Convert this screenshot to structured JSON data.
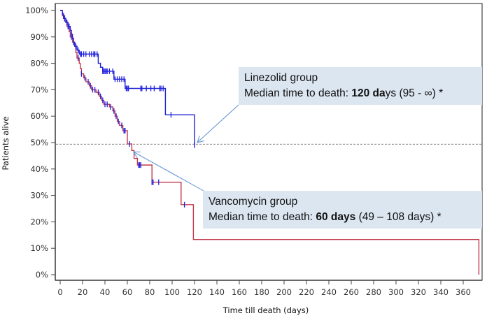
{
  "chart_data": {
    "type": "line",
    "subtype": "kaplan-meier-survival",
    "title": "",
    "xlabel": "Time till death (days)",
    "ylabel": "Patients alive",
    "xlim": [
      0,
      375
    ],
    "ylim": [
      0,
      100
    ],
    "x_ticks": [
      0,
      20,
      40,
      60,
      80,
      100,
      120,
      140,
      160,
      180,
      200,
      220,
      240,
      260,
      280,
      300,
      320,
      340,
      360
    ],
    "x_tick_labels": [
      "0",
      "20",
      "40",
      "60",
      "80",
      "100",
      "120",
      "140",
      "160",
      "180",
      "200",
      "220",
      "240",
      "260",
      "280",
      "300",
      "320",
      "340",
      "360"
    ],
    "y_ticks": [
      0,
      10,
      20,
      30,
      40,
      50,
      60,
      70,
      80,
      90,
      100
    ],
    "y_tick_labels": [
      "0%",
      "10%",
      "20%",
      "30%",
      "40%",
      "50%",
      "60%",
      "70%",
      "80%",
      "90%",
      "100%"
    ],
    "grid": false,
    "reference_line": {
      "y": 49.4,
      "style": "dashed",
      "color": "#555555"
    },
    "series": [
      {
        "name": "Linezolid group",
        "color": "#1f1fd6",
        "steps": [
          [
            0,
            100
          ],
          [
            2,
            98.5
          ],
          [
            3,
            97
          ],
          [
            5,
            95.5
          ],
          [
            7,
            94
          ],
          [
            9,
            92.5
          ],
          [
            10,
            91
          ],
          [
            11,
            89.5
          ],
          [
            12,
            88
          ],
          [
            13,
            86.5
          ],
          [
            15,
            85
          ],
          [
            17,
            83.5
          ],
          [
            34,
            80
          ],
          [
            36,
            78.5
          ],
          [
            38,
            77
          ],
          [
            48,
            74
          ],
          [
            58,
            70.5
          ],
          [
            94,
            60.5
          ],
          [
            120,
            49
          ]
        ],
        "end_x": 120,
        "censor_times": [
          4,
          6,
          8,
          10,
          12,
          14,
          16,
          18,
          19,
          21,
          23,
          26,
          28,
          30,
          31,
          33,
          38,
          39,
          40,
          41,
          42,
          44,
          47,
          49,
          51,
          53,
          55,
          57,
          59,
          60,
          61,
          72,
          73,
          77,
          81,
          84,
          89,
          90,
          92,
          99,
          120
        ]
      },
      {
        "name": "Vancomycin group",
        "color": "#c0394b",
        "steps": [
          [
            0,
            100
          ],
          [
            2,
            98
          ],
          [
            4,
            96
          ],
          [
            6,
            94
          ],
          [
            8,
            92
          ],
          [
            9,
            90
          ],
          [
            11,
            88
          ],
          [
            13,
            86.5
          ],
          [
            14,
            84
          ],
          [
            15,
            82
          ],
          [
            17,
            80
          ],
          [
            18,
            78
          ],
          [
            19,
            76
          ],
          [
            21,
            74.5
          ],
          [
            23,
            73
          ],
          [
            26,
            71.5
          ],
          [
            28,
            70
          ],
          [
            32,
            69
          ],
          [
            35,
            67.5
          ],
          [
            37,
            66
          ],
          [
            39,
            64.5
          ],
          [
            44,
            63.5
          ],
          [
            47,
            62
          ],
          [
            49,
            60
          ],
          [
            51,
            58
          ],
          [
            53,
            56.5
          ],
          [
            56,
            54.5
          ],
          [
            60,
            49.5
          ],
          [
            64,
            47
          ],
          [
            66,
            44
          ],
          [
            69,
            41.5
          ],
          [
            82,
            35
          ],
          [
            108,
            26.5
          ],
          [
            119,
            13.3
          ],
          [
            374,
            0
          ]
        ],
        "end_x": 374,
        "censor_times": [
          3,
          7,
          10,
          12,
          16,
          19,
          22,
          25,
          27,
          29,
          31,
          34,
          36,
          38,
          40,
          42,
          45,
          48,
          50,
          52,
          55,
          57,
          58,
          62,
          70,
          71,
          72,
          82,
          83,
          88,
          111
        ]
      }
    ],
    "annotations": [
      {
        "id": "linezolid",
        "line1": "Linezolid group",
        "line2_prefix": "Median time to death: ",
        "line2_bold": "120 da",
        "line2_suffix": "ys (95 - ∞) *",
        "median_days": 120,
        "ci": "95 - ∞",
        "arrow_target": {
          "x": 120,
          "y": 49.5
        }
      },
      {
        "id": "vancomycin",
        "line1": "Vancomycin group",
        "line2_prefix": "Median time to death: ",
        "line2_bold": "60 days",
        "line2_suffix": " (49 – 108 days) *",
        "median_days": 60,
        "ci": "49 – 108 days",
        "arrow_target": {
          "x": 63,
          "y": 47
        }
      }
    ]
  }
}
